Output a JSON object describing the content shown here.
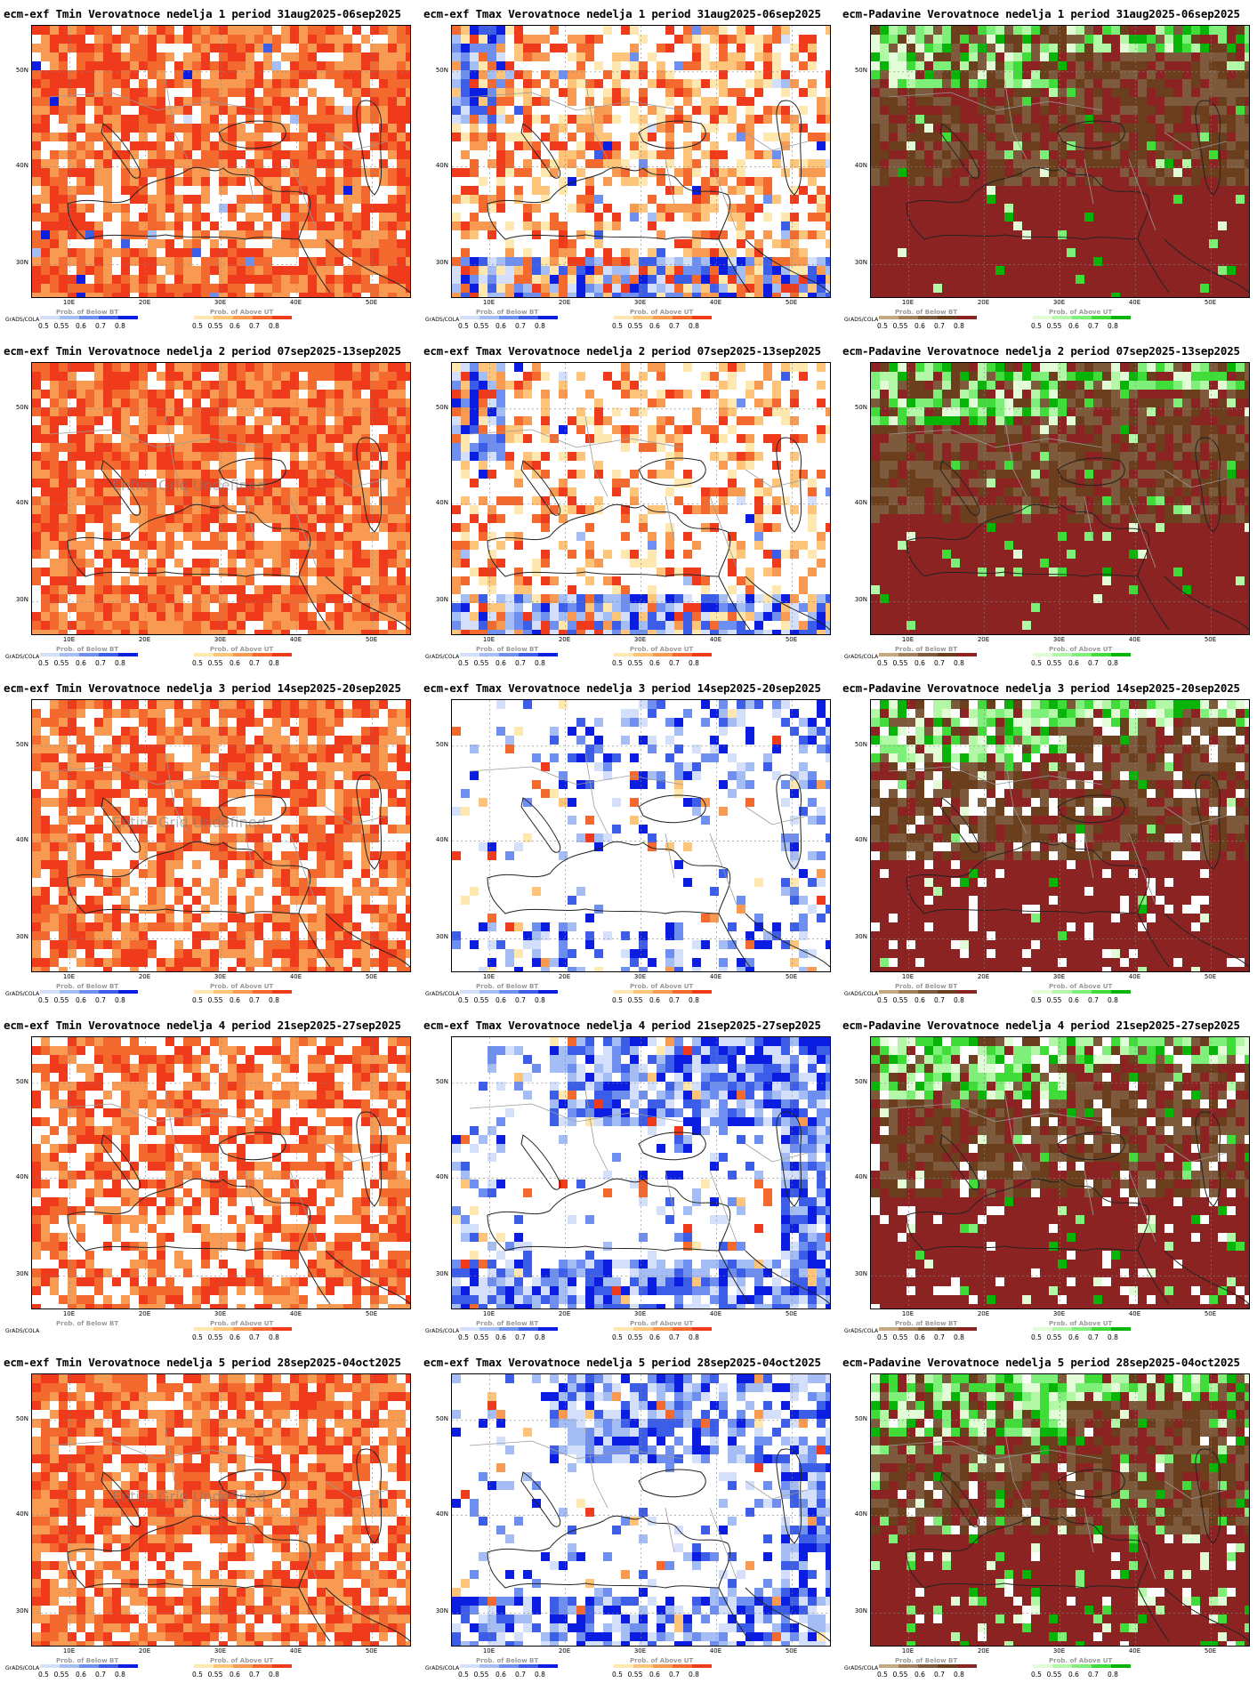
{
  "credit": "GrADS/COLA",
  "map_labels": {
    "lat": [
      "50N",
      "40N",
      "30N"
    ],
    "lon": [
      "10E",
      "20E",
      "30E",
      "40E",
      "50E"
    ]
  },
  "colorbar": {
    "below_caption": "Prob. of Below BT",
    "above_caption": "Prob. of Above UT",
    "ticks": [
      "0.5",
      "0.55",
      "0.6",
      "0.7",
      "0.8"
    ]
  },
  "palettes": {
    "warm": [
      "#ffe7b0",
      "#fec57a",
      "#f99a52",
      "#f46a2e",
      "#ef3b1c"
    ],
    "cold": [
      "#d4e0fb",
      "#a4bef5",
      "#6f8ff0",
      "#3b5de8",
      "#0a1de0"
    ],
    "dry": [
      "#c4a882",
      "#a07f5a",
      "#7d5a3c",
      "#6b3e1e",
      "#8b2323"
    ],
    "wet": [
      "#e3fcd8",
      "#b3f8a6",
      "#7ef07a",
      "#3fdc3a",
      "#08b408"
    ]
  },
  "columns": [
    {
      "var": "Tmin",
      "title_prefix": "ecm-exf Tmin Verovatnoce",
      "left": "cold",
      "right": "warm"
    },
    {
      "var": "Tmax",
      "title_prefix": "ecm-exf Tmax Verovatnoce",
      "left": "cold",
      "right": "warm"
    },
    {
      "var": "Padavine",
      "title_prefix": "ecm-Padavine Verovatnoce",
      "left": "dry",
      "right": "wet"
    }
  ],
  "panels": [
    {
      "title": "ecm-exf Tmin Verovatnoce nedelja 1 period 31aug2025-06sep2025",
      "field": {
        "warm": 0.85,
        "cold": 0.02,
        "bias": "warm"
      },
      "overlay": "",
      "colorbar_show_left": true
    },
    {
      "title": "ecm-exf Tmax Verovatnoce nedelja 1 period 31aug2025-06sep2025",
      "field": {
        "warm": 0.55,
        "cold": 0.15,
        "bias": "mixed"
      },
      "overlay": "",
      "colorbar_show_left": true
    },
    {
      "title": "ecm-Padavine Verovatnoce nedelja 1 period 31aug2025-06sep2025",
      "field": {
        "dry": 0.95,
        "wet": 0.08,
        "bias": "dry"
      },
      "overlay": "",
      "colorbar_show_left": true
    },
    {
      "title": "ecm-exf Tmin Verovatnoce nedelja 2 period 07sep2025-13sep2025",
      "field": {
        "warm": 0.9,
        "cold": 0.0,
        "bias": "warm"
      },
      "overlay": "Entire Grid Undefined",
      "colorbar_show_left": true
    },
    {
      "title": "ecm-exf Tmax Verovatnoce nedelja 2 period 07sep2025-13sep2025",
      "field": {
        "warm": 0.35,
        "cold": 0.18,
        "bias": "mixed"
      },
      "overlay": "",
      "colorbar_show_left": true
    },
    {
      "title": "ecm-Padavine Verovatnoce nedelja 2 period 07sep2025-13sep2025",
      "field": {
        "dry": 0.95,
        "wet": 0.1,
        "bias": "dry"
      },
      "overlay": "",
      "colorbar_show_left": true
    },
    {
      "title": "ecm-exf Tmin Verovatnoce nedelja 3 period 14sep2025-20sep2025",
      "field": {
        "warm": 0.75,
        "cold": 0.0,
        "bias": "warm"
      },
      "overlay": "Entire Grid Undefined",
      "colorbar_show_left": true
    },
    {
      "title": "ecm-exf Tmax Verovatnoce nedelja 3 period 14sep2025-20sep2025",
      "field": {
        "warm": 0.05,
        "cold": 0.18,
        "bias": "cold"
      },
      "overlay": "",
      "colorbar_show_left": true
    },
    {
      "title": "ecm-Padavine Verovatnoce nedelja 3 period 14sep2025-20sep2025",
      "field": {
        "dry": 0.85,
        "wet": 0.03,
        "bias": "dry"
      },
      "overlay": "",
      "colorbar_show_left": true
    },
    {
      "title": "ecm-exf Tmin Verovatnoce nedelja 4 period 21sep2025-27sep2025",
      "field": {
        "warm": 0.65,
        "cold": 0.0,
        "bias": "warm"
      },
      "overlay": "",
      "colorbar_show_left": false
    },
    {
      "title": "ecm-exf Tmax Verovatnoce nedelja 4 period 21sep2025-27sep2025",
      "field": {
        "warm": 0.03,
        "cold": 0.45,
        "bias": "cold"
      },
      "overlay": "",
      "colorbar_show_left": true
    },
    {
      "title": "ecm-Padavine Verovatnoce nedelja 4 period 21sep2025-27sep2025",
      "field": {
        "dry": 0.85,
        "wet": 0.05,
        "bias": "dry"
      },
      "overlay": "",
      "colorbar_show_left": true
    },
    {
      "title": "ecm-exf Tmin Verovatnoce nedelja 5 period 28sep2025-04oct2025",
      "field": {
        "warm": 0.8,
        "cold": 0.0,
        "bias": "warm"
      },
      "overlay": "Entire Grid Undefined",
      "colorbar_show_left": true
    },
    {
      "title": "ecm-exf Tmax Verovatnoce nedelja 5 period 28sep2025-04oct2025",
      "field": {
        "warm": 0.03,
        "cold": 0.4,
        "bias": "cold"
      },
      "overlay": "",
      "colorbar_show_left": true
    },
    {
      "title": "ecm-Padavine Verovatnoce nedelja 5 period 28sep2025-04oct2025",
      "field": {
        "dry": 0.85,
        "wet": 0.1,
        "bias": "dry"
      },
      "overlay": "",
      "colorbar_show_left": true
    }
  ]
}
